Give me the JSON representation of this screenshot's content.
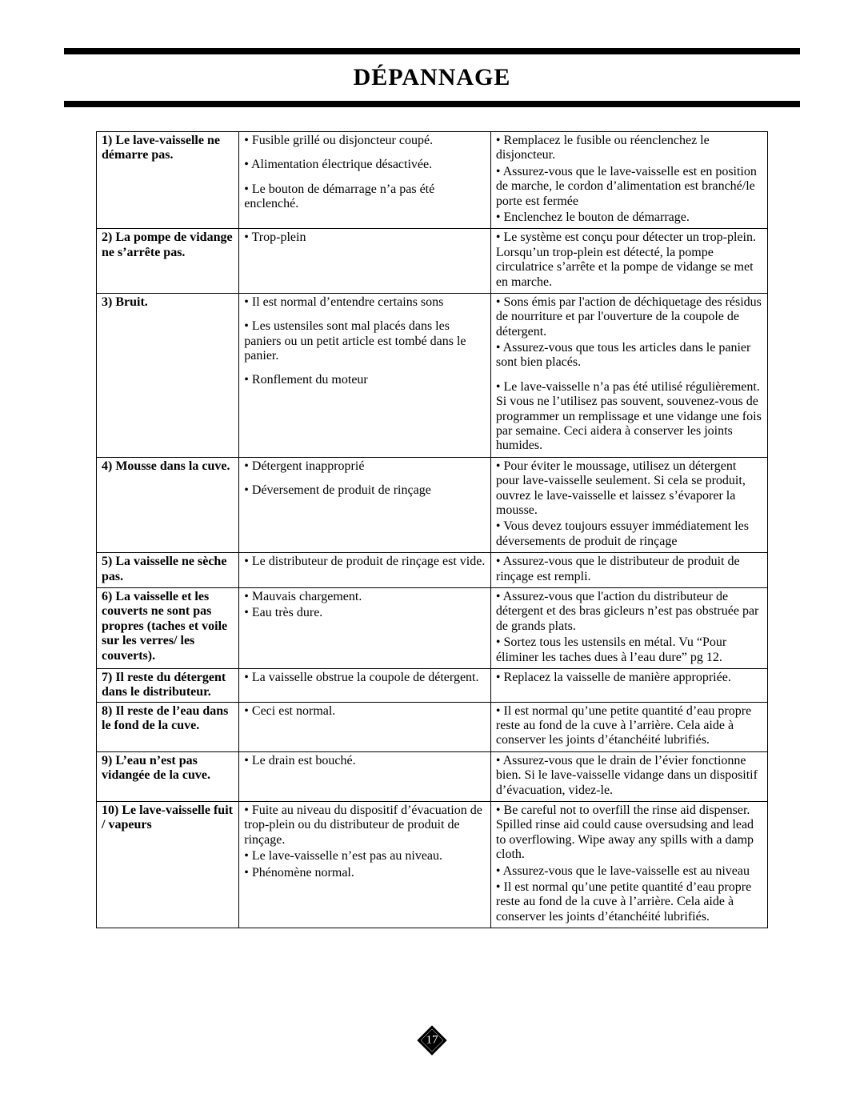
{
  "page_title": "DÉPANNAGE",
  "page_number": "17",
  "colors": {
    "rule": "#000000",
    "text": "#000000",
    "background": "#ffffff",
    "diamond_fill": "#000000",
    "diamond_text": "#ffffff"
  },
  "rows": [
    {
      "problem": "1) Le lave-vaisselle ne démarre pas.",
      "causes": [
        "Fusible grillé ou disjoncteur coupé.",
        "Alimentation électrique désactivée.",
        "Le bouton de démarrage n’a pas été enclenché."
      ],
      "solutions": [
        "Remplacez le fusible ou réenclenchez le disjoncteur.",
        "Assurez-vous que le lave-vaisselle est en position de marche, le cordon d’alimentation est branché/le porte est fermée",
        "Enclenchez le bouton de démarrage."
      ]
    },
    {
      "problem": "2) La pompe de vidange ne s’arrête pas.",
      "causes": [
        "Trop-plein"
      ],
      "solutions": [
        "Le système est conçu pour détecter un trop-plein. Lorsqu’un trop-plein est détecté, la pompe circulatrice s’arrête et la pompe de vidange se met en marche."
      ]
    },
    {
      "problem": "3) Bruit.",
      "causes": [
        "Il est normal d’entendre certains sons",
        "Les ustensiles sont mal placés dans les paniers ou un petit article est tombé dans le panier.",
        "Ronflement du moteur"
      ],
      "solutions": [
        "Sons émis par l'action de déchiquetage des résidus de nourriture et par l'ouverture de la coupole de détergent.",
        "Assurez-vous que tous les articles dans le panier sont bien placés.",
        "Le lave-vaisselle n’a pas été utilisé régulièrement. Si vous ne l’utilisez pas souvent, souvenez-vous de programmer un remplissage et une vidange une fois par semaine. Ceci aidera à conserver les joints humides."
      ]
    },
    {
      "problem": "4) Mousse dans la cuve.",
      "causes": [
        "Détergent inapproprié",
        "Déversement de produit de rinçage"
      ],
      "solutions": [
        "Pour éviter le moussage, utilisez un détergent pour lave-vaisselle seulement. Si cela se produit, ouvrez le lave-vaisselle et laissez s’évaporer la mousse.",
        "Vous devez toujours essuyer immédiatement les déversements de produit de rinçage"
      ]
    },
    {
      "problem": "5) La vaisselle ne sèche pas.",
      "causes": [
        "Le distributeur de produit de rinçage est vide."
      ],
      "solutions": [
        "Assurez-vous que le distributeur de produit de rinçage est rempli."
      ]
    },
    {
      "problem": "6) La vaisselle et les couverts ne sont pas propres (taches et voile sur les verres/ les couverts).",
      "causes": [
        "Mauvais chargement.",
        "Eau très dure."
      ],
      "solutions": [
        "Assurez-vous que l'action du distributeur de détergent et des bras gicleurs n’est pas obstruée par de grands plats.",
        "Sortez tous les ustensils en métal. Vu “Pour éliminer les taches dues à l’eau dure” pg 12."
      ]
    },
    {
      "problem": "7) Il reste du détergent dans le distributeur.",
      "causes": [
        "La vaisselle obstrue la coupole de détergent."
      ],
      "solutions": [
        "Replacez la vaisselle de manière appropriée."
      ]
    },
    {
      "problem": "8) Il reste de l’eau dans le fond de la cuve.",
      "causes": [
        "Ceci est normal."
      ],
      "solutions": [
        "Il est normal qu’une petite quantité d’eau propre reste au fond de la cuve à l’arrière. Cela aide à conserver les joints d’étanchéité lubrifiés."
      ]
    },
    {
      "problem": "9) L’eau n’est pas vidangée de la cuve.",
      "causes": [
        "Le drain est bouché."
      ],
      "solutions": [
        "Assurez-vous que le drain de l’évier fonctionne bien. Si le lave-vaisselle vidange dans un dispositif d’évacuation, videz-le."
      ]
    },
    {
      "problem": "10) Le lave-vaisselle fuit / vapeurs",
      "causes": [
        "Fuite au niveau du dispositif d’évacuation de trop-plein ou du distributeur de produit de rinçage.",
        "Le lave-vaisselle n’est pas au niveau.",
        "Phénomène normal."
      ],
      "solutions": [
        "Be careful not to overfill the rinse aid dispenser. Spilled rinse aid could cause oversudsing and lead to overflowing. Wipe away any spills with a damp cloth.",
        "Assurez-vous que le lave-vaisselle est au niveau",
        "Il est normal qu’une petite quantité d’eau propre reste au fond de la cuve à l’arrière. Cela aide à conserver les joints d’étanchéité lubrifiés."
      ]
    }
  ]
}
